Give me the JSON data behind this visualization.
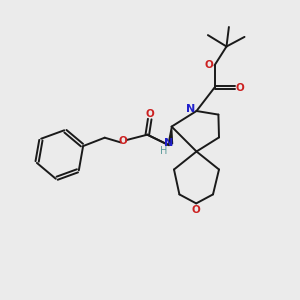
{
  "bg_color": "#ebebeb",
  "bond_color": "#1a1a1a",
  "N_color": "#2020cc",
  "O_color": "#cc2020",
  "H_color": "#5a9a9a",
  "figsize": [
    3.0,
    3.0
  ],
  "dpi": 100,
  "xlim": [
    0,
    10
  ],
  "ylim": [
    0,
    10
  ]
}
